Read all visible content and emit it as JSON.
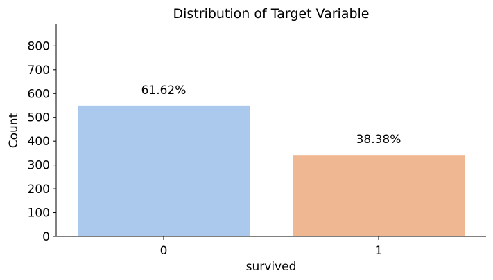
{
  "chart_data": {
    "type": "bar",
    "title": "Distribution of Target Variable",
    "xlabel": "survived",
    "ylabel": "Count",
    "categories": [
      "0",
      "1"
    ],
    "values": [
      549,
      342
    ],
    "data_labels": [
      "61.62%",
      "38.38%"
    ],
    "colors": [
      "#abc9ed",
      "#f0b892"
    ],
    "ylim": [
      0,
      891
    ],
    "yticks": [
      0,
      100,
      200,
      300,
      400,
      500,
      600,
      700,
      800
    ],
    "grid": false,
    "legend": "none",
    "spines": [
      "left",
      "bottom"
    ]
  }
}
